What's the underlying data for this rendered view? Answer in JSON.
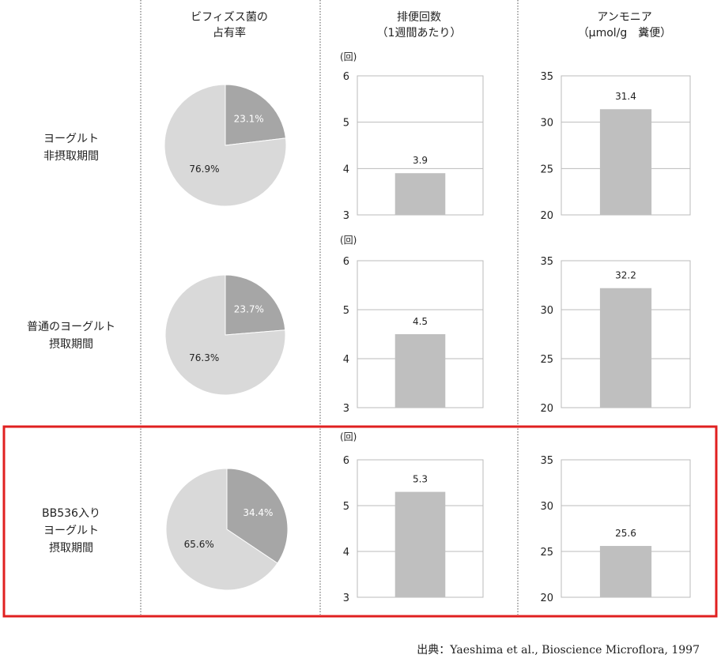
{
  "headers": {
    "col1": [
      "ビフィズス菌の",
      "占有率"
    ],
    "col2": [
      "排便回数",
      "（1週間あたり）"
    ],
    "col3": [
      "アンモニア",
      "（μmol/g　糞便）"
    ]
  },
  "rows": [
    {
      "label": [
        "ヨーグルト",
        "非摂取期間"
      ],
      "highlight": false
    },
    {
      "label": [
        "普通のヨーグルト",
        "摂取期間"
      ],
      "highlight": false
    },
    {
      "label": [
        "BB536入り",
        "ヨーグルト",
        "摂取期間"
      ],
      "highlight": true
    }
  ],
  "unit_label": "(回)",
  "source": "出典：Yaeshima et al., Bioscience Microflora, 1997",
  "colors": {
    "pie_dark": "#a6a6a6",
    "pie_light": "#d9d9d9",
    "bar": "#bfbfbf",
    "grid": "#bbbbbb",
    "highlight": "#e02020"
  },
  "chart_data": [
    {
      "type": "pie",
      "labels": [
        "23.1%",
        "76.9%"
      ],
      "values": [
        23.1,
        76.9
      ]
    },
    {
      "type": "bar",
      "categories": [
        ""
      ],
      "values": [
        3.9
      ],
      "ylim": [
        3,
        6
      ],
      "yticks": [
        "3",
        "4",
        "5",
        "6"
      ]
    },
    {
      "type": "bar",
      "categories": [
        ""
      ],
      "values": [
        31.4
      ],
      "ylim": [
        20,
        35
      ],
      "yticks": [
        "20",
        "25",
        "30",
        "35"
      ]
    },
    {
      "type": "pie",
      "labels": [
        "23.7%",
        "76.3%"
      ],
      "values": [
        23.7,
        76.3
      ]
    },
    {
      "type": "bar",
      "categories": [
        ""
      ],
      "values": [
        4.5
      ],
      "ylim": [
        3,
        6
      ],
      "yticks": [
        "3",
        "4",
        "5",
        "6"
      ]
    },
    {
      "type": "bar",
      "categories": [
        ""
      ],
      "values": [
        32.2
      ],
      "ylim": [
        20,
        35
      ],
      "yticks": [
        "20",
        "25",
        "30",
        "35"
      ]
    },
    {
      "type": "pie",
      "labels": [
        "34.4%",
        "65.6%"
      ],
      "values": [
        34.4,
        65.6
      ]
    },
    {
      "type": "bar",
      "categories": [
        ""
      ],
      "values": [
        5.3
      ],
      "ylim": [
        3,
        6
      ],
      "yticks": [
        "3",
        "4",
        "5",
        "6"
      ]
    },
    {
      "type": "bar",
      "categories": [
        ""
      ],
      "values": [
        25.6
      ],
      "ylim": [
        20,
        35
      ],
      "yticks": [
        "20",
        "25",
        "30",
        "35"
      ]
    }
  ]
}
